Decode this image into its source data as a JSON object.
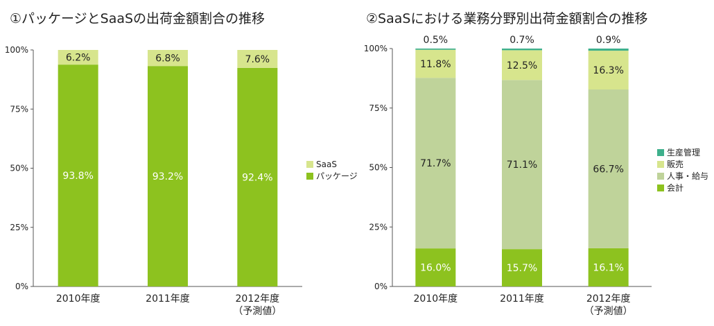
{
  "chart_data": [
    {
      "type": "bar",
      "stacked": true,
      "title": "①パッケージとSaaSの出荷金額割合の推移",
      "categories": [
        "2010年度",
        "2011年度",
        "2012年度"
      ],
      "category_sublabels": [
        "",
        "",
        "（予測値）"
      ],
      "ylim": [
        0,
        100
      ],
      "yticks": [
        "0%",
        "25%",
        "50%",
        "75%",
        "100%"
      ],
      "grid": false,
      "legend_position": "right",
      "series": [
        {
          "name": "パッケージ",
          "values": [
            93.8,
            93.2,
            92.4
          ],
          "labels": [
            "93.8%",
            "93.2%",
            "92.4%"
          ],
          "color": "#8dc21f",
          "label_color": "#ffffff"
        },
        {
          "name": "SaaS",
          "values": [
            6.2,
            6.8,
            7.6
          ],
          "labels": [
            "6.2%",
            "6.8%",
            "7.6%"
          ],
          "color": "#d7e58d",
          "label_color": "#222222"
        }
      ]
    },
    {
      "type": "bar",
      "stacked": true,
      "title": "②SaaSにおける業務分野別出荷金額割合の推移",
      "categories": [
        "2010年度",
        "2011年度",
        "2012年度"
      ],
      "category_sublabels": [
        "",
        "",
        "（予測値）"
      ],
      "ylim": [
        0,
        100
      ],
      "yticks": [
        "0%",
        "25%",
        "50%",
        "75%",
        "100%"
      ],
      "grid": false,
      "legend_position": "right",
      "series": [
        {
          "name": "会計",
          "values": [
            16.0,
            15.7,
            16.1
          ],
          "labels": [
            "16.0%",
            "15.7%",
            "16.1%"
          ],
          "color": "#8dc21f",
          "label_color": "#ffffff"
        },
        {
          "name": "人事・給与",
          "values": [
            71.7,
            71.1,
            66.7
          ],
          "labels": [
            "71.7%",
            "71.1%",
            "66.7%"
          ],
          "color": "#bfd39a",
          "label_color": "#222222"
        },
        {
          "name": "販売",
          "values": [
            11.8,
            12.5,
            16.3
          ],
          "labels": [
            "11.8%",
            "12.5%",
            "16.3%"
          ],
          "color": "#d7e58d",
          "label_color": "#222222"
        },
        {
          "name": "生産管理",
          "values": [
            0.5,
            0.7,
            0.9
          ],
          "labels": [
            "0.5%",
            "0.7%",
            "0.9%"
          ],
          "color": "#3eb08c",
          "label_color": "#222222",
          "label_above": true
        }
      ]
    }
  ]
}
